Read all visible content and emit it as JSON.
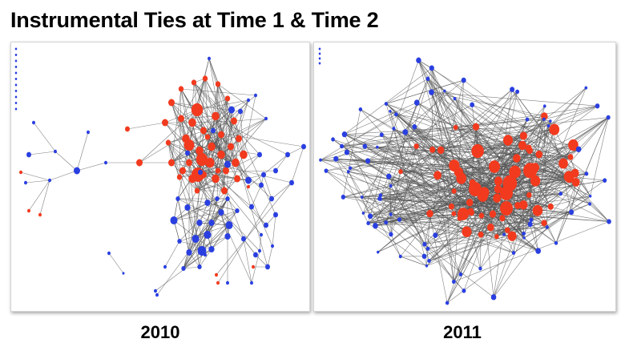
{
  "title": "Instrumental Ties at Time 1 & Time 2",
  "colors": {
    "node_red": "#f23a1e",
    "node_blue": "#2a3fe0",
    "edge": "#555555",
    "border": "#d4d4d4"
  },
  "panels": [
    {
      "caption": "2010",
      "seed": 2010
    },
    {
      "caption": "2011",
      "seed": 2011
    }
  ]
}
